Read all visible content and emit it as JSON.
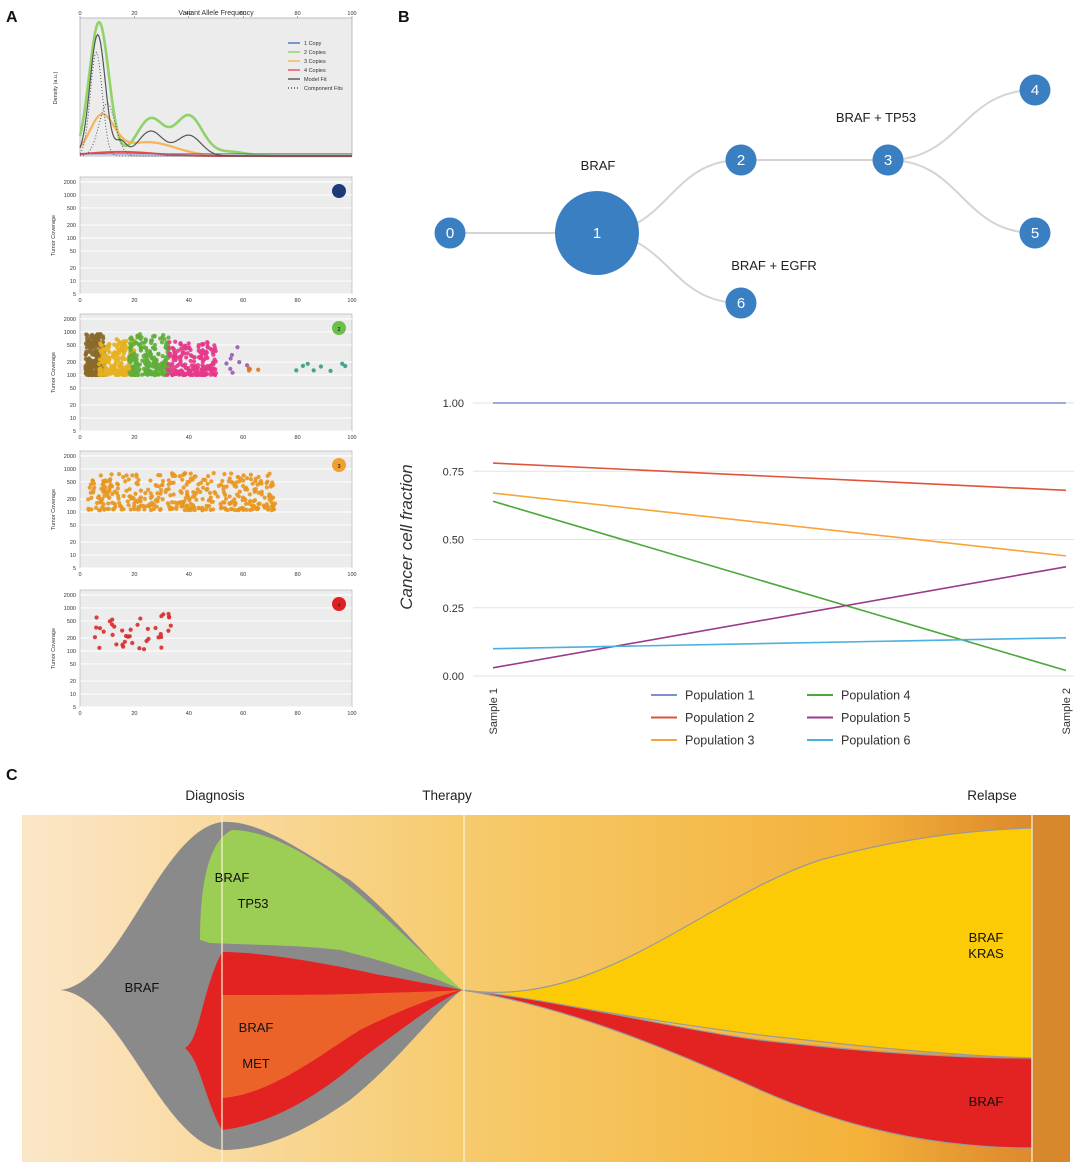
{
  "panel_letters": [
    "A",
    "B",
    "C"
  ],
  "colors": {
    "density_bg": "#ececec",
    "plot_bg": "#ececec",
    "grid": "#ffffff",
    "node": "#3a7fc2",
    "edge": "#d4d4d4",
    "fish_gray": "#8a8a8a",
    "fish_green": "#9ccd55",
    "fish_red": "#e32222",
    "fish_orange": "#ec632a",
    "fish_yellow": "#fdcb05"
  },
  "panel_a": {
    "density": {
      "title": "Variant Allele Frequency",
      "ylabel": "Density (a.u.)",
      "xticks": [
        "0",
        "20",
        "40",
        "60",
        "80",
        "100"
      ],
      "legend": [
        {
          "name": "1 Copy",
          "color": "#4a6fc4",
          "style": "solid"
        },
        {
          "name": "2 Copies",
          "color": "#8fd36a",
          "style": "solid"
        },
        {
          "name": "3 Copies",
          "color": "#f6b35a",
          "style": "solid"
        },
        {
          "name": "4 Copies",
          "color": "#e84c4c",
          "style": "solid"
        },
        {
          "name": "Model Fit",
          "color": "#555555",
          "style": "solid"
        },
        {
          "name": "Component Fits",
          "color": "#555555",
          "style": "dotted"
        }
      ]
    },
    "scatter_panels": [
      {
        "badge": "1",
        "badge_color": "#1d3a7a",
        "ylabel": "Tumor Coverage",
        "yticks": [
          "2000",
          "1000",
          "500",
          "200",
          "100",
          "50",
          "20",
          "10",
          "5"
        ],
        "xticks": [
          "0",
          "20",
          "40",
          "60",
          "80",
          "100"
        ],
        "clusters": []
      },
      {
        "badge": "2",
        "badge_color": "#6cbf4a",
        "ylabel": "Tumor Coverage",
        "yticks": [
          "2000",
          "1000",
          "500",
          "200",
          "100",
          "50",
          "20",
          "10",
          "5"
        ],
        "xticks": [
          "0",
          "20",
          "40",
          "60",
          "80",
          "100"
        ],
        "clusters": [
          {
            "color": "#8a6a2a",
            "x": [
              2,
              9
            ],
            "y": [
              100,
              900
            ],
            "n": 260
          },
          {
            "color": "#e5b020",
            "x": [
              7,
              20
            ],
            "y": [
              100,
              700
            ],
            "n": 200
          },
          {
            "color": "#5fae3a",
            "x": [
              18,
              33
            ],
            "y": [
              100,
              900
            ],
            "n": 220
          },
          {
            "color": "#e5388a",
            "x": [
              32,
              50
            ],
            "y": [
              100,
              600
            ],
            "n": 200
          },
          {
            "color": "#9b59b6",
            "x": [
              53,
              63
            ],
            "y": [
              100,
              600
            ],
            "n": 8
          },
          {
            "color": "#e0761e",
            "x": [
              62,
              68
            ],
            "y": [
              120,
              180
            ],
            "n": 4
          },
          {
            "color": "#2e9e86",
            "x": [
              75,
              98
            ],
            "y": [
              120,
              190
            ],
            "n": 8
          }
        ]
      },
      {
        "badge": "3",
        "badge_color": "#f0a030",
        "ylabel": "Tumor Coverage",
        "yticks": [
          "2000",
          "1000",
          "500",
          "200",
          "100",
          "50",
          "20",
          "10",
          "5"
        ],
        "xticks": [
          "0",
          "20",
          "40",
          "60",
          "80",
          "100"
        ],
        "clusters": [
          {
            "color": "#e8961e",
            "x": [
              3,
              72
            ],
            "y": [
              110,
              800
            ],
            "n": 380
          }
        ]
      },
      {
        "badge": "4",
        "badge_color": "#e02020",
        "ylabel": "Tumor Coverage",
        "yticks": [
          "2000",
          "1000",
          "500",
          "200",
          "100",
          "50",
          "20",
          "10",
          "5"
        ],
        "xticks": [
          "0",
          "20",
          "40",
          "60",
          "80",
          "100"
        ],
        "clusters": [
          {
            "color": "#d92b2b",
            "x": [
              5,
              34
            ],
            "y": [
              110,
              800
            ],
            "n": 40
          }
        ]
      }
    ]
  },
  "panel_b": {
    "tree": {
      "nodes": [
        {
          "id": "0",
          "size": "small"
        },
        {
          "id": "1",
          "size": "large"
        },
        {
          "id": "2",
          "size": "small"
        },
        {
          "id": "3",
          "size": "small"
        },
        {
          "id": "4",
          "size": "small"
        },
        {
          "id": "5",
          "size": "small"
        },
        {
          "id": "6",
          "size": "small"
        }
      ],
      "edges": [
        [
          "0",
          "1"
        ],
        [
          "1",
          "2"
        ],
        [
          "2",
          "3"
        ],
        [
          "3",
          "4"
        ],
        [
          "3",
          "5"
        ],
        [
          "1",
          "6"
        ]
      ],
      "mutation_labels": [
        "BRAF",
        "BRAF + TP53",
        "BRAF + EGFR"
      ]
    },
    "ccf_chart": {
      "type": "line",
      "ylabel": "Cancer cell fraction",
      "x": [
        "Sample 1",
        "Sample 2"
      ],
      "yticks": [
        "1.00",
        "0.75",
        "0.50",
        "0.25",
        "0.00"
      ],
      "ylim": [
        0,
        1
      ],
      "legend_placement": "bottom",
      "series": [
        {
          "name": "Population 1",
          "color": "#7b8fd4",
          "values": [
            1.0,
            1.0
          ]
        },
        {
          "name": "Population 2",
          "color": "#e0553a",
          "values": [
            0.78,
            0.68
          ]
        },
        {
          "name": "Population 3",
          "color": "#f5a53a",
          "values": [
            0.67,
            0.44
          ]
        },
        {
          "name": "Population 4",
          "color": "#4aa83a",
          "values": [
            0.64,
            0.02
          ]
        },
        {
          "name": "Population 5",
          "color": "#9b3a8c",
          "values": [
            0.03,
            0.4
          ]
        },
        {
          "name": "Population 6",
          "color": "#4ab0e0",
          "values": [
            0.1,
            0.14
          ]
        }
      ]
    }
  },
  "panel_c": {
    "timepoints": [
      "Diagnosis",
      "Therapy",
      "Relapse"
    ],
    "labels": {
      "founder": "BRAF",
      "clone_green_1": "BRAF",
      "clone_green_2": "TP53",
      "clone_orange_1": "BRAF",
      "clone_orange_2": "MET",
      "clone_yellow_1": "BRAF",
      "clone_yellow_2": "KRAS",
      "clone_red_relapse": "BRAF"
    }
  }
}
